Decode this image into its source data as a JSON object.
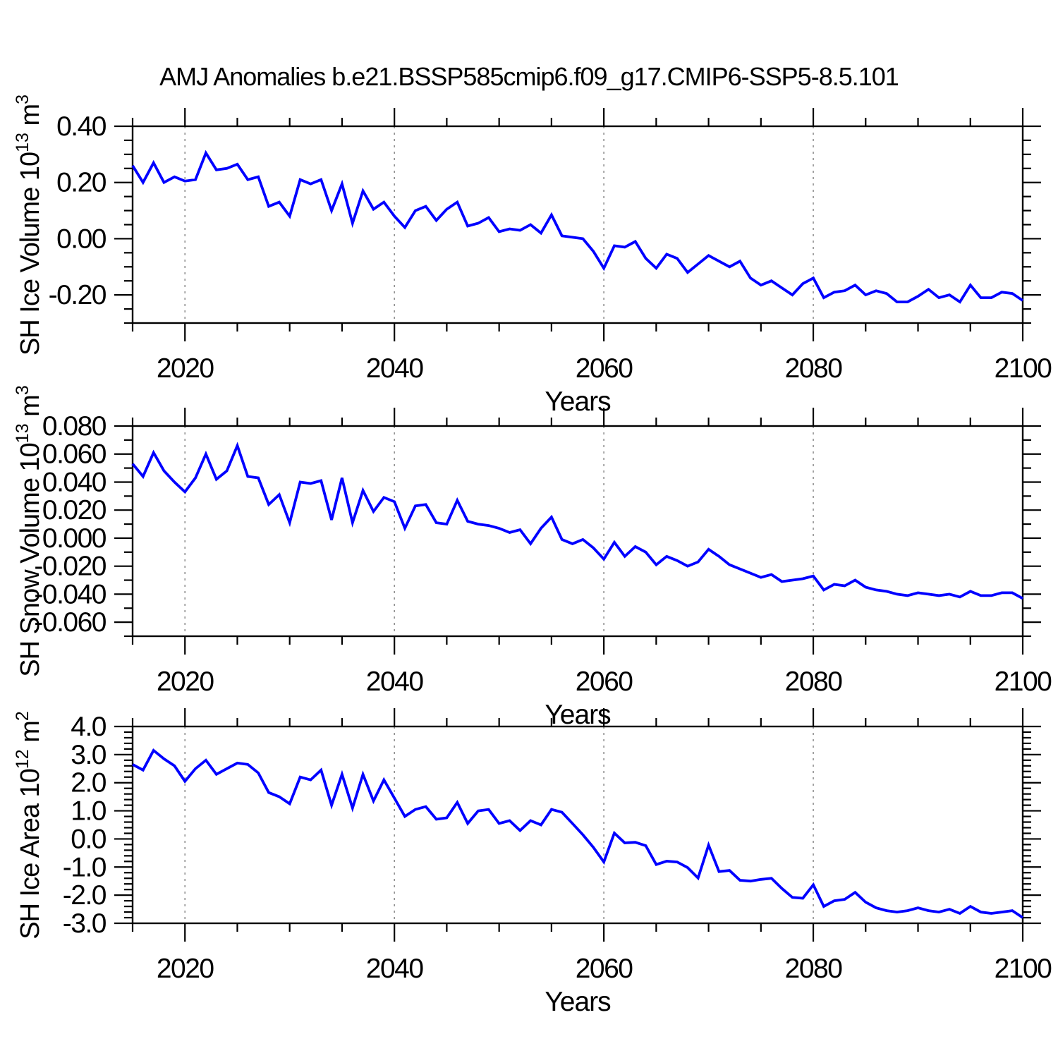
{
  "title": "AMJ Anomalies b.e21.BSSP585cmip6.f09_g17.CMIP6-SSP5-8.5.101",
  "colors": {
    "line": "#0000ff",
    "grid": "#909090",
    "frame": "#000000",
    "text": "#000000",
    "background": "#ffffff"
  },
  "x_axis": {
    "label": "Years",
    "range": [
      2015,
      2100
    ],
    "minor_step": 5,
    "gridlines": [
      2020,
      2040,
      2060,
      2080
    ],
    "major_ticks": [
      {
        "value": 2020,
        "label": "2020"
      },
      {
        "value": 2040,
        "label": "2040"
      },
      {
        "value": 2060,
        "label": "2060"
      },
      {
        "value": 2080,
        "label": "2080"
      },
      {
        "value": 2100,
        "label": "2100"
      }
    ]
  },
  "chart_data": [
    {
      "type": "line",
      "panel": "sh-ice-volume",
      "ylabel_parts": [
        {
          "text": "SH Ice Volume 10"
        },
        {
          "text": "13",
          "sup": true
        },
        {
          "text": " m"
        },
        {
          "text": "3",
          "sup": true
        }
      ],
      "ylim": [
        -0.3,
        0.4
      ],
      "ytick_minor_step": 0.05,
      "yticks": [
        {
          "value": 0.4,
          "label": "0.40"
        },
        {
          "value": 0.2,
          "label": "0.20"
        },
        {
          "value": 0.0,
          "label": "0.00"
        },
        {
          "value": -0.2,
          "label": "-0.20"
        }
      ],
      "x_years": {
        "start": 2015,
        "end": 2100,
        "step": 1
      },
      "values": [
        0.26,
        0.2,
        0.27,
        0.2,
        0.22,
        0.205,
        0.21,
        0.305,
        0.245,
        0.25,
        0.265,
        0.21,
        0.22,
        0.115,
        0.13,
        0.08,
        0.21,
        0.195,
        0.21,
        0.1,
        0.195,
        0.055,
        0.17,
        0.105,
        0.13,
        0.08,
        0.04,
        0.1,
        0.115,
        0.065,
        0.105,
        0.13,
        0.045,
        0.055,
        0.075,
        0.025,
        0.035,
        0.03,
        0.05,
        0.02,
        0.085,
        0.01,
        0.005,
        0.0,
        -0.045,
        -0.105,
        -0.025,
        -0.03,
        -0.01,
        -0.07,
        -0.105,
        -0.055,
        -0.07,
        -0.12,
        -0.09,
        -0.06,
        -0.08,
        -0.1,
        -0.08,
        -0.14,
        -0.165,
        -0.15,
        -0.175,
        -0.2,
        -0.16,
        -0.14,
        -0.21,
        -0.19,
        -0.185,
        -0.165,
        -0.2,
        -0.185,
        -0.195,
        -0.225,
        -0.225,
        -0.205,
        -0.18,
        -0.21,
        -0.2,
        -0.225,
        -0.165,
        -0.21,
        -0.21,
        -0.19,
        -0.195,
        -0.22
      ]
    },
    {
      "type": "line",
      "panel": "sh-snow-volume",
      "ylabel_parts": [
        {
          "text": "SH Snow Volume 10"
        },
        {
          "text": "13",
          "sup": true
        },
        {
          "text": " m"
        },
        {
          "text": "3",
          "sup": true
        }
      ],
      "ylim": [
        -0.07,
        0.08
      ],
      "ytick_minor_step": 0.01,
      "yticks": [
        {
          "value": 0.08,
          "label": "0.080"
        },
        {
          "value": 0.06,
          "label": "0.060"
        },
        {
          "value": 0.04,
          "label": "0.040"
        },
        {
          "value": 0.02,
          "label": "0.020"
        },
        {
          "value": 0.0,
          "label": "0.000"
        },
        {
          "value": -0.02,
          "label": "-0.020"
        },
        {
          "value": -0.04,
          "label": "-0.040"
        },
        {
          "value": -0.06,
          "label": "-0.060"
        }
      ],
      "x_years": {
        "start": 2015,
        "end": 2100,
        "step": 1
      },
      "values": [
        0.053,
        0.044,
        0.061,
        0.048,
        0.04,
        0.033,
        0.043,
        0.06,
        0.042,
        0.048,
        0.066,
        0.044,
        0.043,
        0.024,
        0.031,
        0.011,
        0.04,
        0.039,
        0.041,
        0.013,
        0.043,
        0.011,
        0.034,
        0.019,
        0.029,
        0.026,
        0.007,
        0.023,
        0.024,
        0.011,
        0.01,
        0.027,
        0.012,
        0.01,
        0.009,
        0.007,
        0.004,
        0.006,
        -0.004,
        0.007,
        0.015,
        -0.001,
        -0.004,
        -0.001,
        -0.007,
        -0.015,
        -0.003,
        -0.013,
        -0.006,
        -0.01,
        -0.019,
        -0.013,
        -0.016,
        -0.02,
        -0.017,
        -0.008,
        -0.013,
        -0.019,
        -0.022,
        -0.025,
        -0.028,
        -0.026,
        -0.031,
        -0.03,
        -0.029,
        -0.027,
        -0.037,
        -0.033,
        -0.034,
        -0.03,
        -0.035,
        -0.037,
        -0.038,
        -0.04,
        -0.041,
        -0.039,
        -0.04,
        -0.041,
        -0.04,
        -0.042,
        -0.038,
        -0.041,
        -0.041,
        -0.039,
        -0.039,
        -0.043
      ]
    },
    {
      "type": "line",
      "panel": "sh-ice-area",
      "ylabel_parts": [
        {
          "text": "SH Ice Area 10"
        },
        {
          "text": "12",
          "sup": true
        },
        {
          "text": " m"
        },
        {
          "text": "2",
          "sup": true
        }
      ],
      "ylim": [
        -3.0,
        4.0
      ],
      "ytick_minor_step": 0.2,
      "yticks": [
        {
          "value": 4.0,
          "label": "4.0"
        },
        {
          "value": 3.0,
          "label": "3.0"
        },
        {
          "value": 2.0,
          "label": "2.0"
        },
        {
          "value": 1.0,
          "label": "1.0"
        },
        {
          "value": 0.0,
          "label": "0.0"
        },
        {
          "value": -1.0,
          "label": "-1.0"
        },
        {
          "value": -2.0,
          "label": "-2.0"
        },
        {
          "value": -3.0,
          "label": "-3.0"
        }
      ],
      "x_years": {
        "start": 2015,
        "end": 2100,
        "step": 1
      },
      "values": [
        2.65,
        2.45,
        3.15,
        2.85,
        2.6,
        2.05,
        2.5,
        2.8,
        2.3,
        2.5,
        2.7,
        2.65,
        2.35,
        1.65,
        1.5,
        1.25,
        2.2,
        2.1,
        2.45,
        1.2,
        2.3,
        1.1,
        2.3,
        1.35,
        2.1,
        1.45,
        0.8,
        1.05,
        1.15,
        0.7,
        0.75,
        1.3,
        0.55,
        1.0,
        1.05,
        0.55,
        0.65,
        0.3,
        0.65,
        0.5,
        1.05,
        0.95,
        0.55,
        0.15,
        -0.3,
        -0.82,
        0.21,
        -0.14,
        -0.12,
        -0.24,
        -0.91,
        -0.79,
        -0.82,
        -1.02,
        -1.39,
        -0.22,
        -1.16,
        -1.12,
        -1.47,
        -1.5,
        -1.44,
        -1.4,
        -1.76,
        -2.08,
        -2.11,
        -1.63,
        -2.4,
        -2.2,
        -2.15,
        -1.9,
        -2.25,
        -2.45,
        -2.55,
        -2.6,
        -2.55,
        -2.45,
        -2.55,
        -2.6,
        -2.5,
        -2.65,
        -2.4,
        -2.6,
        -2.65,
        -2.6,
        -2.55,
        -2.8
      ]
    }
  ]
}
